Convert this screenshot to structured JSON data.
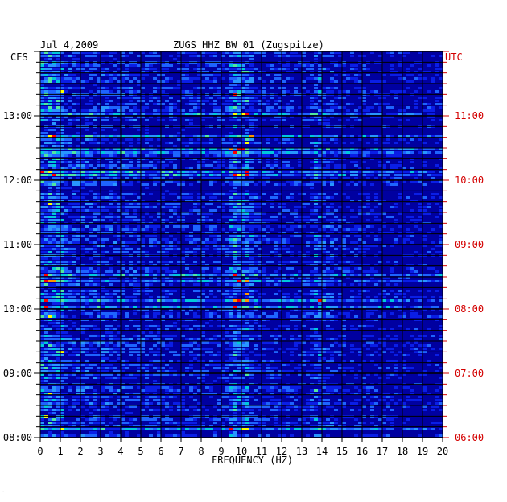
{
  "chart_data": {
    "type": "heatmap",
    "title_date": "Jul 4,2009",
    "title_station": "ZUGS HHZ BW 01 (Zugspitze)",
    "left_axis_label": "CES",
    "right_axis_label": "UTC",
    "xlabel": "FREQUENCY (HZ)",
    "xlim": [
      0,
      20
    ],
    "x_ticks": [
      "0",
      "1",
      "2",
      "3",
      "4",
      "5",
      "6",
      "7",
      "8",
      "9",
      "10",
      "11",
      "12",
      "13",
      "14",
      "15",
      "16",
      "17",
      "18",
      "19",
      "20"
    ],
    "left_ticks": [
      "08:00",
      "09:00",
      "10:00",
      "11:00",
      "12:00",
      "13:00"
    ],
    "right_ticks": [
      "06:00",
      "07:00",
      "08:00",
      "09:00",
      "10:00",
      "11:00"
    ],
    "time_range_local": [
      "08:00",
      "14:00"
    ],
    "grid": true,
    "colors": {
      "background": "#0000a0",
      "low": "#0000c8",
      "mid": "#1e50ff",
      "high": "#00c8c8",
      "peak": "#ffff00",
      "max": "#ff0000",
      "right_axis_color": "#d40000"
    },
    "footnote": "░"
  }
}
